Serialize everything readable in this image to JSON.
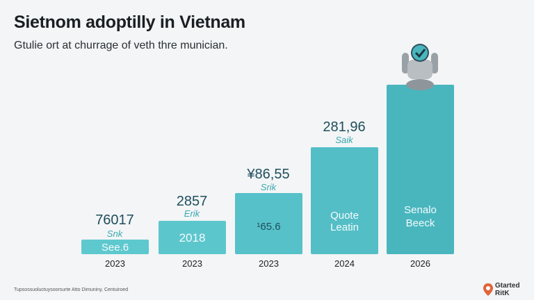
{
  "header": {
    "title": "Sietnom adoptilly in Vietnam",
    "subtitle": "Gtulie ort at churrage of veth thre munician."
  },
  "bars": [
    {
      "value_text": "76017",
      "sub_text": "Snk",
      "inner_text": [
        "See.6"
      ],
      "year": "2023"
    },
    {
      "value_text": "2857",
      "sub_text": "Erik",
      "inner_text": [
        "2018"
      ],
      "year": "2023"
    },
    {
      "value_text": "¥86,55",
      "sub_text": "Srik",
      "inner_text": [
        "¹65.6"
      ],
      "year": "2023"
    },
    {
      "value_text": "281,96",
      "sub_text": "Saik",
      "inner_text": [
        "Quote",
        "Leatin"
      ],
      "year": "2024"
    },
    {
      "inner_text": [
        "Senalo",
        "Beeck"
      ],
      "year": "2026"
    }
  ],
  "footer": "Tupsossuoluctuysoorsurte Atto Dimuniny, Centuiroed",
  "logo": [
    "Gtarted",
    "RitK"
  ]
}
